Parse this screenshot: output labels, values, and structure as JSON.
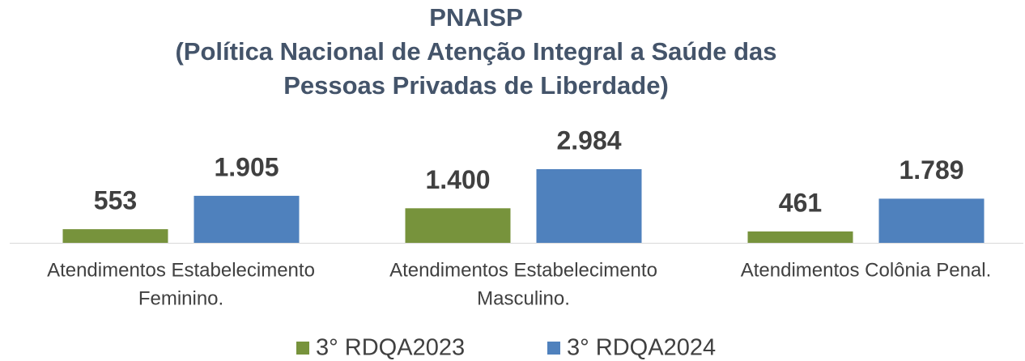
{
  "chart_data": {
    "type": "bar",
    "title": [
      "PNAISP",
      "(Política Nacional de Atenção Integral a Saúde das",
      "Pessoas Privadas de Liberdade)"
    ],
    "categories": [
      [
        "Atendimentos Estabelecimento",
        "Feminino."
      ],
      [
        "Atendimentos Estabelecimento",
        "Masculino."
      ],
      [
        "Atendimentos Colônia Penal."
      ]
    ],
    "series": [
      {
        "name": "3° RDQA2023",
        "color": "#77933c",
        "values": [
          553,
          1400,
          461
        ],
        "value_labels": [
          "553",
          "1.400",
          "461"
        ]
      },
      {
        "name": "3° RDQA2024",
        "color": "#4f81bd",
        "values": [
          1905,
          2984,
          1789
        ],
        "value_labels": [
          "1.905",
          "2.984",
          "1.789"
        ]
      }
    ]
  }
}
